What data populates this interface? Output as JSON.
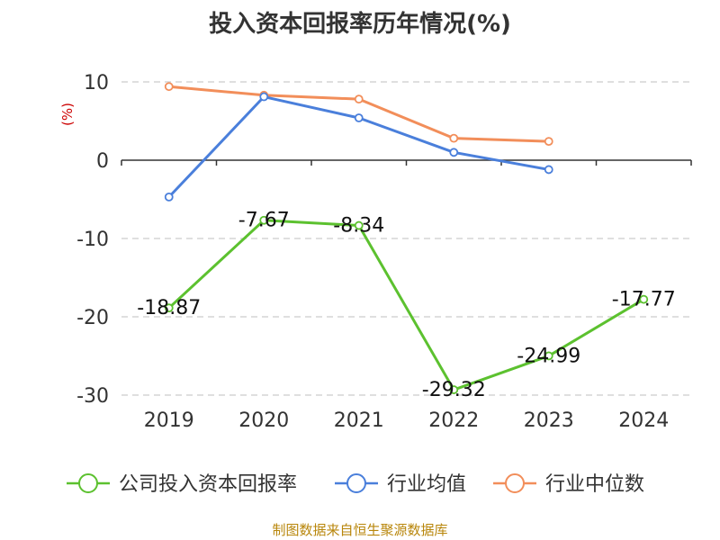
{
  "chart_data": {
    "type": "line",
    "title": "投入资本回报率历年情况(%)",
    "ylabel": "(%)",
    "categories": [
      "2019",
      "2020",
      "2021",
      "2022",
      "2023",
      "2024"
    ],
    "ylim": [
      -30,
      10
    ],
    "yticks": [
      10,
      0,
      -10,
      -20,
      -30
    ],
    "grid": true,
    "legend": "bottom",
    "series": [
      {
        "name": "公司投入资本回报率",
        "color": "#5cc12f",
        "values": [
          -18.87,
          -7.67,
          -8.34,
          -29.32,
          -24.99,
          -17.77
        ],
        "labels": [
          "-18.87",
          "-7.67",
          "-8.34",
          "-29.32",
          "-24.99",
          "-17.77"
        ]
      },
      {
        "name": "行业均值",
        "color": "#4a7fdb",
        "values": [
          -4.7,
          8.1,
          5.4,
          1.0,
          -1.2,
          null
        ]
      },
      {
        "name": "行业中位数",
        "color": "#f28e5a",
        "values": [
          9.4,
          8.3,
          7.8,
          2.8,
          2.4,
          null
        ]
      }
    ]
  },
  "footer": {
    "source": "制图数据来自恒生聚源数据库"
  }
}
